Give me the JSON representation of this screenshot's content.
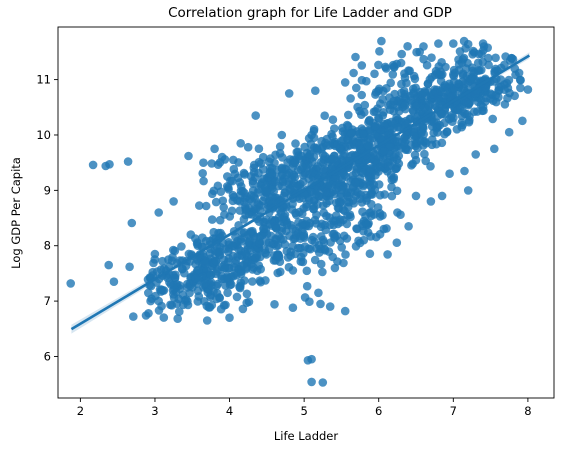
{
  "chart_data": {
    "type": "scatter",
    "title": "Correlation graph for Life Ladder and GDP",
    "xlabel": "Life Ladder",
    "ylabel": "Log GDP Per Capita",
    "xlim": [
      1.7,
      8.35
    ],
    "ylim": [
      5.25,
      11.95
    ],
    "x_ticks": [
      2,
      3,
      4,
      5,
      6,
      7,
      8
    ],
    "y_ticks": [
      6,
      7,
      8,
      9,
      10,
      11
    ],
    "grid": false,
    "point_color": "#1f77b4",
    "regression": {
      "slope": 0.805,
      "intercept": 4.98,
      "x_range": [
        1.88,
        8.02
      ]
    },
    "clusters": [
      {
        "cx": 3.6,
        "cy": 7.5,
        "sx": 0.45,
        "sy": 0.4,
        "rho": 0.3,
        "n": 260
      },
      {
        "cx": 4.6,
        "cy": 8.2,
        "sx": 0.45,
        "sy": 0.5,
        "rho": 0.4,
        "n": 260
      },
      {
        "cx": 4.6,
        "cy": 9.2,
        "sx": 0.4,
        "sy": 0.3,
        "rho": 0.3,
        "n": 180
      },
      {
        "cx": 5.6,
        "cy": 9.4,
        "sx": 0.45,
        "sy": 0.45,
        "rho": 0.5,
        "n": 320
      },
      {
        "cx": 6.3,
        "cy": 10.2,
        "sx": 0.5,
        "sy": 0.4,
        "rho": 0.5,
        "n": 300
      },
      {
        "cx": 7.2,
        "cy": 10.8,
        "sx": 0.35,
        "sy": 0.3,
        "rho": 0.4,
        "n": 230
      },
      {
        "cx": 5.6,
        "cy": 8.3,
        "sx": 0.35,
        "sy": 0.4,
        "rho": 0.3,
        "n": 90
      },
      {
        "cx": 6.5,
        "cy": 11.2,
        "sx": 0.5,
        "sy": 0.25,
        "rho": 0.3,
        "n": 60
      }
    ],
    "points": [
      [
        1.87,
        7.32
      ],
      [
        2.17,
        9.46
      ],
      [
        2.34,
        9.44
      ],
      [
        2.39,
        9.47
      ],
      [
        2.64,
        9.52
      ],
      [
        2.38,
        7.65
      ],
      [
        2.45,
        7.35
      ],
      [
        2.66,
        7.62
      ],
      [
        2.69,
        8.41
      ],
      [
        2.71,
        6.72
      ],
      [
        2.88,
        6.74
      ],
      [
        2.95,
        7.42
      ],
      [
        3.05,
        7.0
      ],
      [
        3.1,
        7.72
      ],
      [
        3.15,
        7.55
      ],
      [
        5.05,
        5.93
      ],
      [
        5.1,
        5.95
      ],
      [
        5.1,
        5.54
      ],
      [
        5.25,
        5.53
      ],
      [
        5.22,
        6.95
      ],
      [
        5.07,
        6.99
      ],
      [
        5.35,
        6.9
      ],
      [
        5.55,
        6.82
      ],
      [
        4.85,
        6.88
      ],
      [
        3.25,
        8.8
      ],
      [
        3.05,
        8.6
      ],
      [
        3.48,
        8.2
      ],
      [
        3.7,
        6.65
      ],
      [
        4.0,
        6.7
      ],
      [
        4.35,
        10.35
      ],
      [
        4.8,
        10.75
      ],
      [
        5.15,
        10.8
      ],
      [
        5.1,
        10.0
      ],
      [
        4.7,
        10.0
      ],
      [
        5.55,
        10.95
      ],
      [
        5.7,
        10.85
      ],
      [
        6.1,
        11.2
      ],
      [
        6.3,
        11.3
      ],
      [
        6.55,
        11.5
      ],
      [
        6.6,
        11.6
      ],
      [
        6.8,
        11.65
      ],
      [
        7.0,
        11.65
      ],
      [
        7.2,
        11.64
      ],
      [
        7.4,
        11.65
      ],
      [
        6.5,
        8.9
      ],
      [
        6.7,
        8.8
      ],
      [
        7.2,
        9.0
      ],
      [
        6.95,
        9.3
      ],
      [
        7.15,
        9.35
      ],
      [
        7.55,
        9.75
      ],
      [
        7.3,
        9.65
      ],
      [
        7.75,
        10.05
      ],
      [
        7.9,
        10.85
      ],
      [
        8.0,
        10.82
      ],
      [
        6.85,
        8.9
      ],
      [
        6.4,
        8.35
      ],
      [
        6.25,
        8.6
      ],
      [
        6.05,
        8.55
      ],
      [
        5.8,
        8.1
      ],
      [
        5.75,
        8.05
      ],
      [
        6.2,
        9.2
      ],
      [
        5.9,
        8.75
      ],
      [
        3.8,
        9.75
      ],
      [
        3.9,
        9.6
      ],
      [
        3.65,
        9.5
      ],
      [
        3.45,
        9.62
      ],
      [
        4.15,
        9.85
      ],
      [
        4.25,
        9.78
      ],
      [
        4.05,
        9.55
      ]
    ]
  }
}
